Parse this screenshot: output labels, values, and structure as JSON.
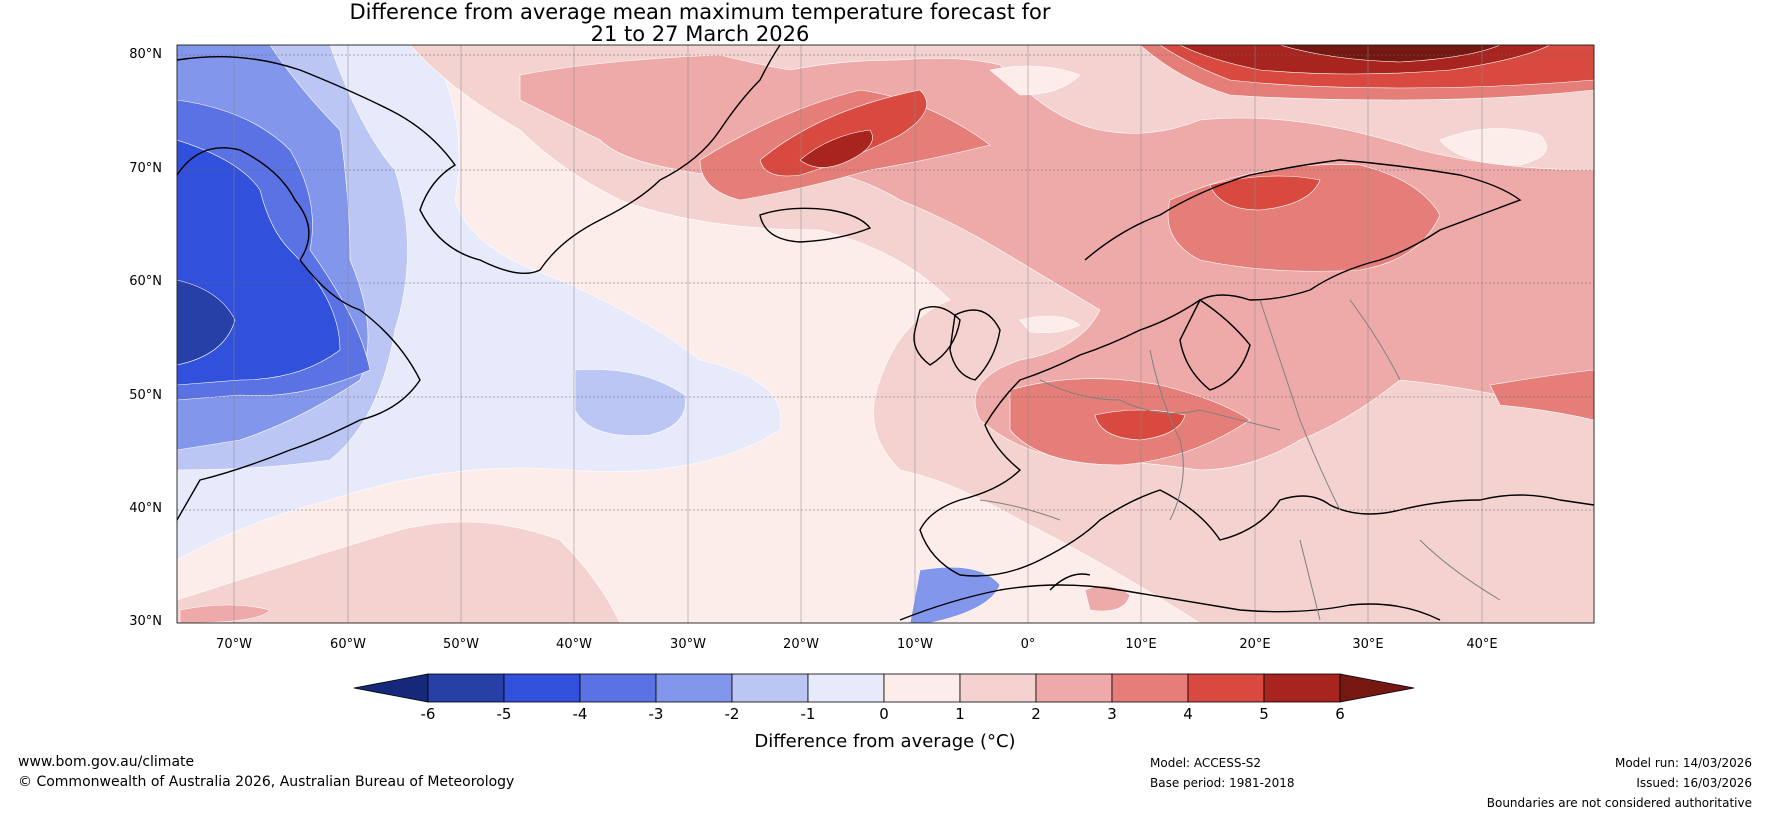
{
  "title_line1": "Difference from average mean maximum temperature forecast for",
  "title_line2": "21 to 27 March 2026",
  "lat_labels": [
    "80°N",
    "70°N",
    "60°N",
    "50°N",
    "40°N",
    "30°N"
  ],
  "lon_labels": [
    "70°W",
    "60°W",
    "50°W",
    "40°W",
    "30°W",
    "20°W",
    "10°W",
    "0°",
    "10°E",
    "20°E",
    "30°E",
    "40°E"
  ],
  "colorbar": {
    "ticks": [
      "-6",
      "-5",
      "-4",
      "-3",
      "-2",
      "-1",
      "0",
      "1",
      "2",
      "3",
      "4",
      "5",
      "6"
    ],
    "label": "Difference from average (°C)",
    "colors": {
      "below_min": "#16287a",
      "bins": [
        "#2740a8",
        "#3150dc",
        "#5a72e4",
        "#8296ec",
        "#bcc6f4",
        "#e6eafa",
        "#fcecea",
        "#f4d2d0",
        "#eeaaa8",
        "#e57e78",
        "#d84a40",
        "#a8251f"
      ],
      "above_max": "#761812"
    }
  },
  "map_colors": {
    "deep_blue": "#2740a8",
    "strong_blue": "#3150dc",
    "mid_blue": "#5a72e4",
    "light_blue": "#8296ec",
    "pale_blue": "#bcc6f4",
    "faint_blue": "#e6eafa",
    "faint_red": "#fcecea",
    "pale_red": "#f4d2d0",
    "light_red": "#eeaaa8",
    "mid_red": "#e57e78",
    "strong_red": "#d84a40",
    "deep_red": "#a8251f",
    "darkest_red": "#761812"
  },
  "footer": {
    "url": "www.bom.gov.au/climate",
    "copyright": "© Commonwealth of Australia 2026, Australian Bureau of Meteorology",
    "model": "Model: ACCESS-S2",
    "base_period": "Base period: 1981-2018",
    "model_run": "Model run: 14/03/2026",
    "issued": "Issued: 16/03/2026",
    "disclaimer": "Boundaries are not considered authoritative"
  }
}
